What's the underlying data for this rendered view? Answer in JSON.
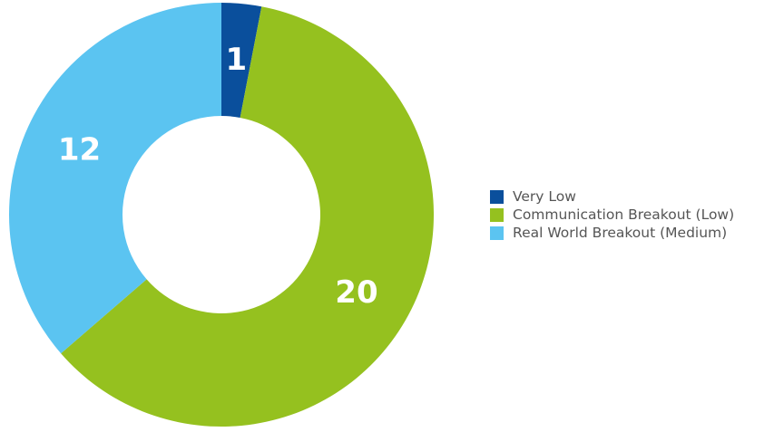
{
  "chart_data": {
    "type": "pie",
    "variant": "donut",
    "title": "",
    "categories": [
      "Very Low",
      "Communication Breakout (Low)",
      "Real World Breakout (Medium)"
    ],
    "values": [
      1,
      20,
      12
    ],
    "data_labels": [
      "1",
      "20",
      "12"
    ],
    "colors": [
      "#0a4f9c",
      "#95c11f",
      "#5bc4f1"
    ],
    "start_angle": "12 o'clock",
    "direction": "clockwise",
    "legend_position": "right",
    "grid": false
  },
  "legend": {
    "items": [
      {
        "label": "Very Low",
        "color": "#0a4f9c"
      },
      {
        "label": "Communication Breakout (Low)",
        "color": "#95c11f"
      },
      {
        "label": "Real World Breakout (Medium)",
        "color": "#5bc4f1"
      }
    ]
  }
}
